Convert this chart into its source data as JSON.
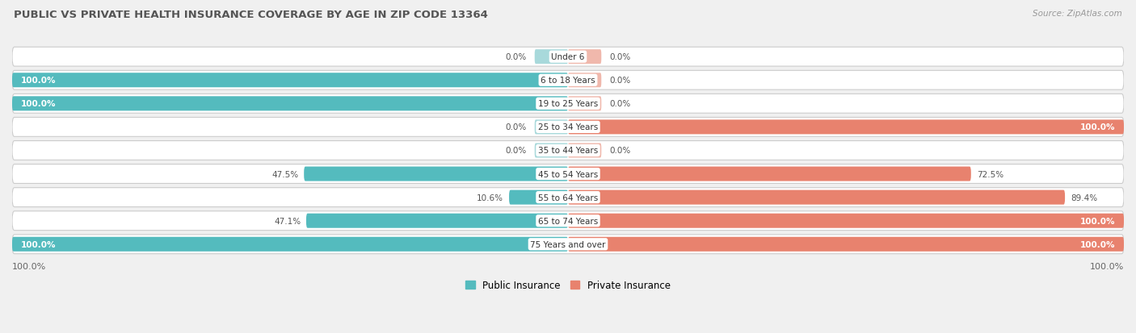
{
  "title": "PUBLIC VS PRIVATE HEALTH INSURANCE COVERAGE BY AGE IN ZIP CODE 13364",
  "source": "Source: ZipAtlas.com",
  "categories": [
    "Under 6",
    "6 to 18 Years",
    "19 to 25 Years",
    "25 to 34 Years",
    "35 to 44 Years",
    "45 to 54 Years",
    "55 to 64 Years",
    "65 to 74 Years",
    "75 Years and over"
  ],
  "public": [
    0.0,
    100.0,
    100.0,
    0.0,
    0.0,
    47.5,
    10.6,
    47.1,
    100.0
  ],
  "private": [
    0.0,
    0.0,
    0.0,
    100.0,
    0.0,
    72.5,
    89.4,
    100.0,
    100.0
  ],
  "public_color": "#54bbbe",
  "private_color": "#e8826e",
  "public_light": "#a8d9db",
  "private_light": "#f0b8ac",
  "bg_color": "#f0f0f0",
  "row_bg_color": "#e8e8e8",
  "title_color": "#555555",
  "source_color": "#999999",
  "bar_height": 0.62,
  "legend_public": "Public Insurance",
  "legend_private": "Private Insurance"
}
